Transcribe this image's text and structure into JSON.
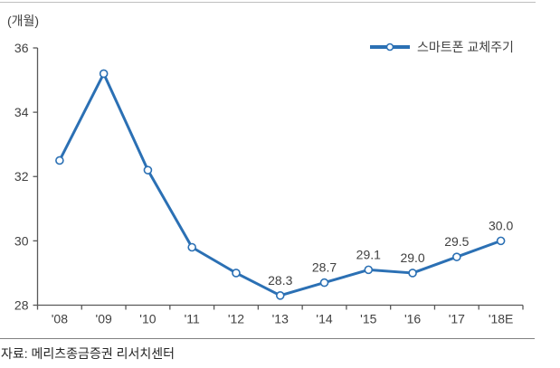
{
  "chart": {
    "unit_label": "(개월)"
  },
  "legend": {
    "label": "스마트폰 교체주기"
  },
  "footer": {
    "source": "자료: 메리츠종금증권 리서치센터"
  },
  "colors": {
    "line": "#2B70B4",
    "marker_fill": "#FFFFFF",
    "axis": "#595959",
    "tick_text": "#404040",
    "label_text": "#404040",
    "top_rule": "#BFBFBF",
    "bottom_rule": "#808080",
    "background": "#FFFFFF"
  },
  "chart_data": {
    "type": "line",
    "title": "스마트폰 교체주기",
    "unit": "개월",
    "categories": [
      "'08",
      "'09",
      "'10",
      "'11",
      "'12",
      "'13",
      "'14",
      "'15",
      "'16",
      "'17",
      "'18E"
    ],
    "series": [
      {
        "name": "스마트폰 교체주기",
        "values": [
          32.5,
          35.2,
          32.2,
          29.8,
          29.0,
          28.3,
          28.7,
          29.1,
          29.0,
          29.5,
          30.0
        ]
      }
    ],
    "point_labels": [
      null,
      null,
      null,
      null,
      null,
      "28.3",
      "28.7",
      "29.1",
      "29.0",
      "29.5",
      "30.0"
    ],
    "ylim": [
      28,
      36
    ],
    "yticks": [
      28,
      30,
      32,
      34,
      36
    ],
    "grid": false,
    "legend_position": "top-right",
    "source": "자료: 메리츠종금증권 리서치센터"
  }
}
